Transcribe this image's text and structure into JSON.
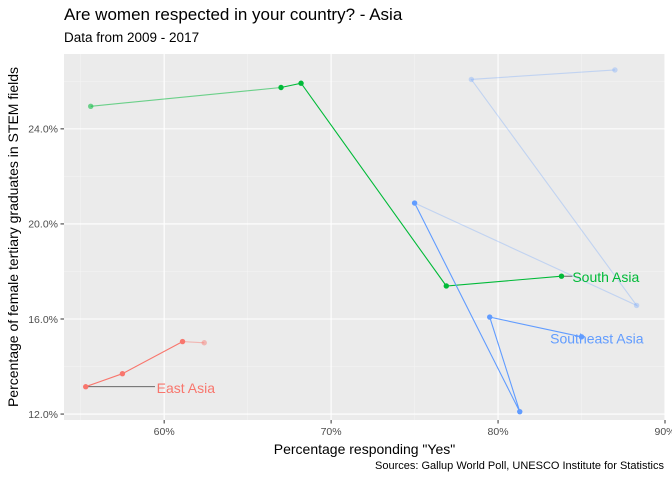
{
  "chart_data": {
    "type": "line",
    "title": "Are women respected in your country? - Asia",
    "subtitle": "Data from 2009 - 2017",
    "xlabel": "Percentage responding \"Yes\"",
    "ylabel": "Percentage of female tertiary graduates in STEM fields",
    "caption": "Sources: Gallup World Poll, UNESCO Institute for Statistics",
    "xlim": [
      0.54,
      0.9
    ],
    "ylim": [
      0.1175,
      0.2715
    ],
    "x_ticks": [
      0.6,
      0.7,
      0.8,
      0.9
    ],
    "x_tick_labels": [
      "60%",
      "70%",
      "80%",
      "90%"
    ],
    "y_ticks": [
      0.12,
      0.16,
      0.2,
      0.24
    ],
    "y_tick_labels": [
      "12.0%",
      "16.0%",
      "20.0%",
      "24.0%"
    ],
    "grid": true,
    "legend": "none",
    "series": [
      {
        "label": "East Asia",
        "color": "#f8766d",
        "label_anchor": [
          0.5955,
          0.131
        ],
        "paths": [
          {
            "opacity": 1,
            "points": [
              [
                0.553,
                0.1315
              ],
              [
                0.575,
                0.137
              ],
              [
                0.611,
                0.1505
              ]
            ]
          },
          {
            "opacity": 0.45,
            "points": [
              [
                0.611,
                0.1505
              ],
              [
                0.624,
                0.15
              ]
            ]
          }
        ],
        "leader": [
          [
            0.553,
            0.1315
          ],
          [
            0.5945,
            0.1315
          ]
        ]
      },
      {
        "label": "South Asia",
        "color": "#00ba38",
        "label_anchor": [
          0.8445,
          0.1777
        ],
        "paths": [
          {
            "opacity": 1,
            "points": [
              [
                0.838,
                0.178
              ],
              [
                0.769,
                0.1739
              ],
              [
                0.682,
                0.2592
              ],
              [
                0.67,
                0.2574
              ]
            ]
          },
          {
            "opacity": 0.55,
            "points": [
              [
                0.67,
                0.2574
              ],
              [
                0.556,
                0.2495
              ]
            ]
          }
        ],
        "leader": [
          [
            0.838,
            0.178
          ],
          [
            0.8445,
            0.178
          ]
        ]
      },
      {
        "label": "Southeast Asia",
        "color": "#619cff",
        "label_anchor": [
          0.8312,
          0.1518
        ],
        "paths": [
          {
            "opacity": 1,
            "points": [
              [
                0.85,
                0.1525
              ],
              [
                0.795,
                0.1608
              ],
              [
                0.813,
                0.121
              ],
              [
                0.75,
                0.2088
              ]
            ]
          },
          {
            "opacity": 0.3,
            "points": [
              [
                0.75,
                0.2088
              ],
              [
                0.883,
                0.1657
              ],
              [
                0.784,
                0.2608
              ],
              [
                0.87,
                0.2648
              ]
            ]
          }
        ],
        "leader": [
          [
            0.85,
            0.1525
          ],
          [
            0.85,
            0.1525
          ]
        ]
      }
    ]
  }
}
